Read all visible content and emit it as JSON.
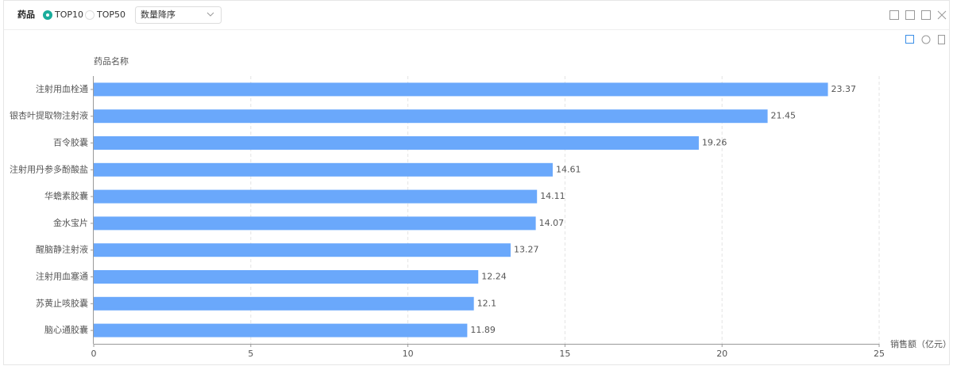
{
  "toolbar": {
    "title": "药品",
    "options": [
      "TOP10",
      "TOP50"
    ],
    "selected": 0,
    "sort": "数量降序"
  },
  "chart_data": {
    "type": "bar",
    "orientation": "horizontal",
    "y_label": "药品名称",
    "x_label": "销售额（亿元）",
    "categories": [
      "注射用血栓通",
      "银杏叶提取物注射液",
      "百令胶囊",
      "注射用丹参多酚酸盐",
      "华蟾素胶囊",
      "金水宝片",
      "醒脑静注射液",
      "注射用血塞通",
      "苏黄止咳胶囊",
      "脑心通胶囊"
    ],
    "values": [
      23.37,
      21.45,
      19.26,
      14.61,
      14.11,
      14.07,
      13.27,
      12.24,
      12.1,
      11.89
    ],
    "color": "#6aa8fb",
    "xlim": [
      0,
      25
    ],
    "xticks": [
      0,
      5,
      10,
      15,
      20,
      25
    ],
    "grid": true
  }
}
